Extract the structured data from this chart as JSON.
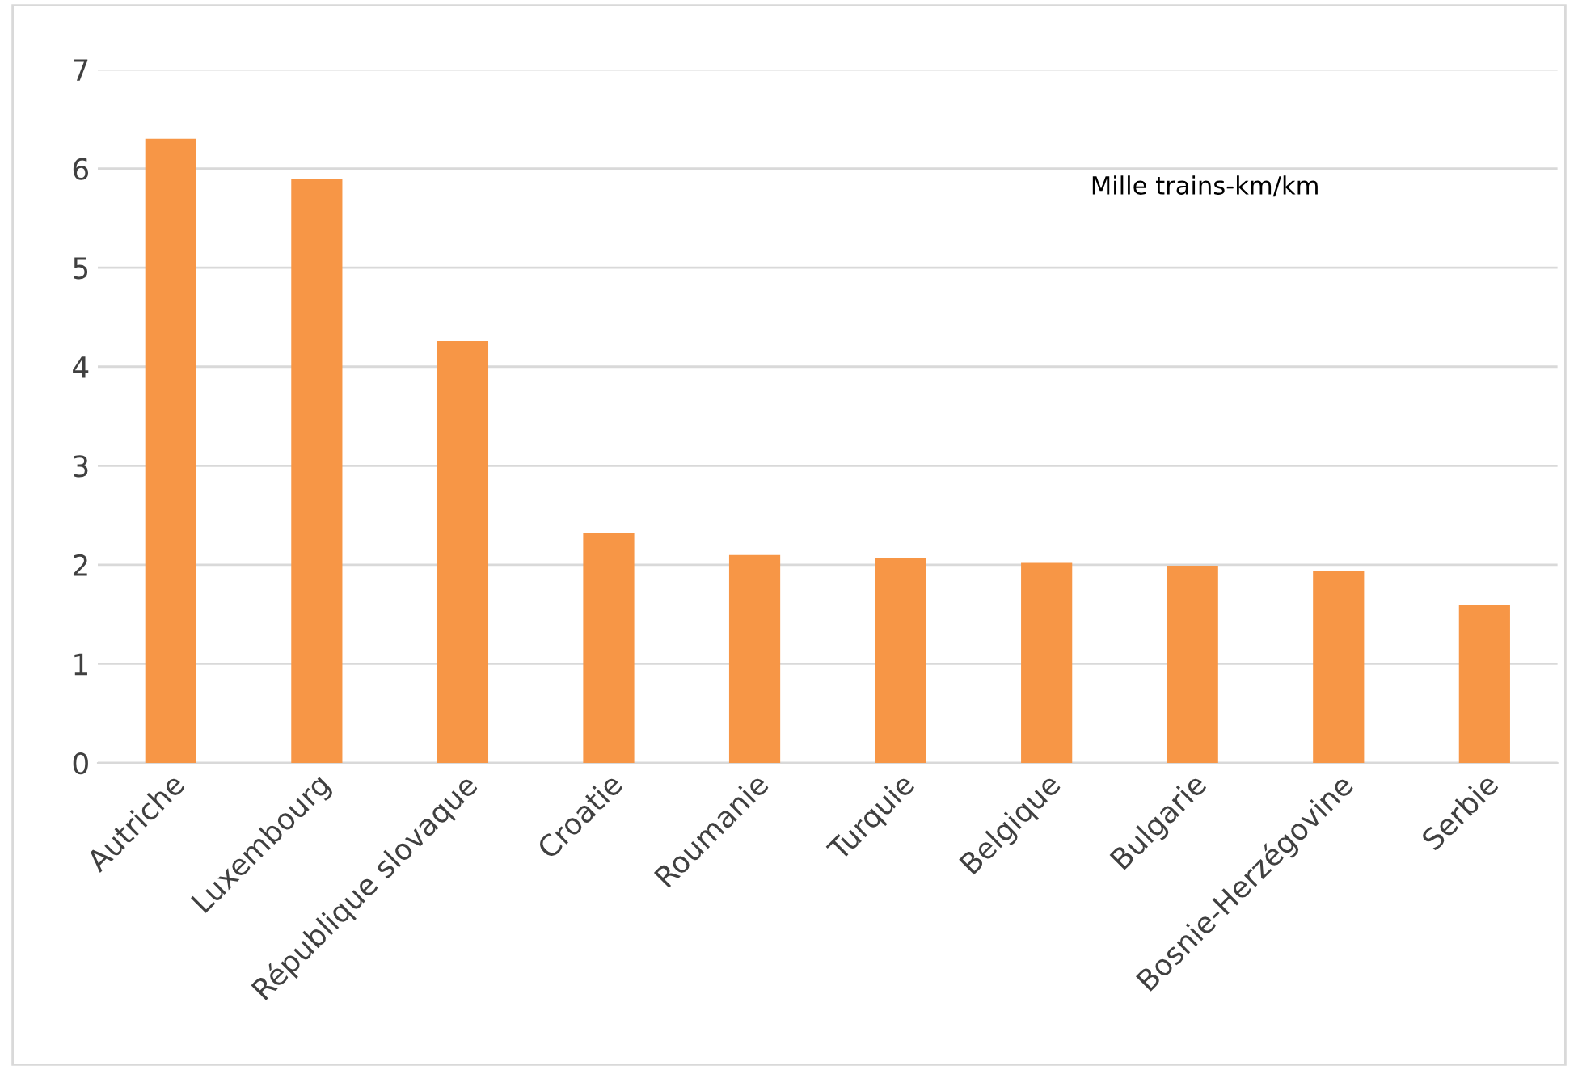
{
  "chart_data": {
    "type": "bar",
    "categories": [
      "Autriche",
      "Luxembourg",
      "République slovaque",
      "Croatie",
      "Roumanie",
      "Turquie",
      "Belgique",
      "Bulgarie",
      "Bosnie-Herzégovine",
      "Serbie"
    ],
    "values": [
      6.3,
      5.89,
      4.26,
      2.32,
      2.1,
      2.07,
      2.02,
      1.99,
      1.94,
      1.6
    ],
    "color": "#f79646",
    "ylim": [
      0,
      7
    ],
    "yticks": [
      0,
      1,
      2,
      3,
      4,
      5,
      6,
      7
    ],
    "grid": "y",
    "legend": false,
    "annotations": [
      "Mille trains-km/km"
    ]
  }
}
